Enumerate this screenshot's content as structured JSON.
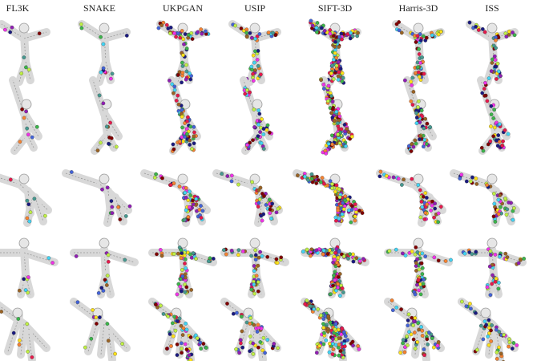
{
  "header": {
    "columns": [
      "FL3K",
      "SNAKE",
      "UKPGAN",
      "USIP",
      "SIFT-3D",
      "Harris-3D",
      "ISS"
    ]
  }
}
